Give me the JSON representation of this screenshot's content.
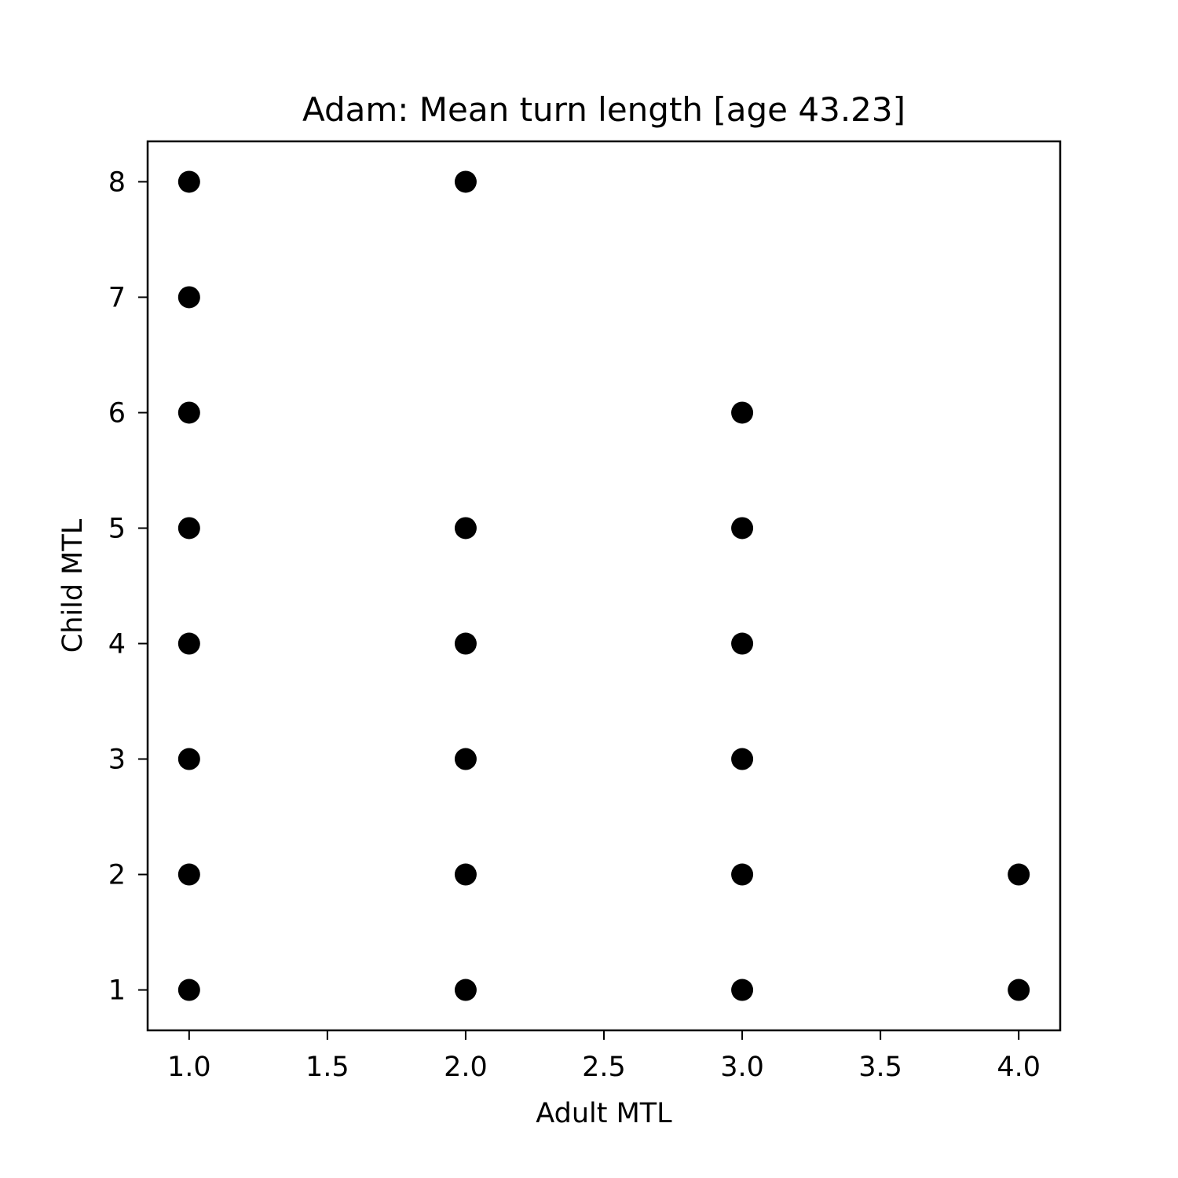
{
  "chart_data": {
    "type": "scatter",
    "title": "Adam: Mean turn length [age 43.23]",
    "xlabel": "Adult MTL",
    "ylabel": "Child MTL",
    "xlim": [
      0.85,
      4.15
    ],
    "ylim": [
      0.65,
      8.35
    ],
    "xticks": [
      "1.0",
      "1.5",
      "2.0",
      "2.5",
      "3.0",
      "3.5",
      "4.0"
    ],
    "yticks": [
      "1",
      "2",
      "3",
      "4",
      "5",
      "6",
      "7",
      "8"
    ],
    "grid": false,
    "marker_color": "#000000",
    "points": [
      {
        "x": 1,
        "y": 1
      },
      {
        "x": 1,
        "y": 2
      },
      {
        "x": 1,
        "y": 3
      },
      {
        "x": 1,
        "y": 4
      },
      {
        "x": 1,
        "y": 5
      },
      {
        "x": 1,
        "y": 6
      },
      {
        "x": 1,
        "y": 7
      },
      {
        "x": 1,
        "y": 8
      },
      {
        "x": 2,
        "y": 1
      },
      {
        "x": 2,
        "y": 2
      },
      {
        "x": 2,
        "y": 3
      },
      {
        "x": 2,
        "y": 4
      },
      {
        "x": 2,
        "y": 5
      },
      {
        "x": 2,
        "y": 8
      },
      {
        "x": 3,
        "y": 1
      },
      {
        "x": 3,
        "y": 2
      },
      {
        "x": 3,
        "y": 3
      },
      {
        "x": 3,
        "y": 4
      },
      {
        "x": 3,
        "y": 5
      },
      {
        "x": 3,
        "y": 6
      },
      {
        "x": 4,
        "y": 1
      },
      {
        "x": 4,
        "y": 2
      }
    ]
  }
}
